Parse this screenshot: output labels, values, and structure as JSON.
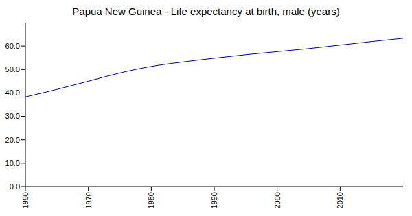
{
  "chart_data": {
    "type": "line",
    "title": "Papua New Guinea - Life expectancy at birth, male (years)",
    "x": [
      1960,
      1965,
      1970,
      1975,
      1980,
      1985,
      1990,
      1995,
      2000,
      2005,
      2010,
      2015,
      2020
    ],
    "values": [
      38.3,
      41.5,
      45.0,
      48.5,
      51.3,
      53.2,
      54.8,
      56.3,
      57.6,
      58.9,
      60.4,
      61.9,
      63.3
    ],
    "color": "#00008b",
    "xlim": [
      1960,
      2020
    ],
    "xticks": [
      1960,
      1970,
      1980,
      1990,
      2000,
      2010
    ],
    "ylim": [
      0,
      70
    ],
    "yticks": [
      {
        "value": 0,
        "label": "0.0"
      },
      {
        "value": 10,
        "label": "10.0"
      },
      {
        "value": 20,
        "label": "20.0"
      },
      {
        "value": 30,
        "label": "30.0"
      },
      {
        "value": 40,
        "label": "40.0"
      },
      {
        "value": 50,
        "label": "50.0"
      },
      {
        "value": 60,
        "label": "60.0"
      }
    ],
    "grid": false
  }
}
